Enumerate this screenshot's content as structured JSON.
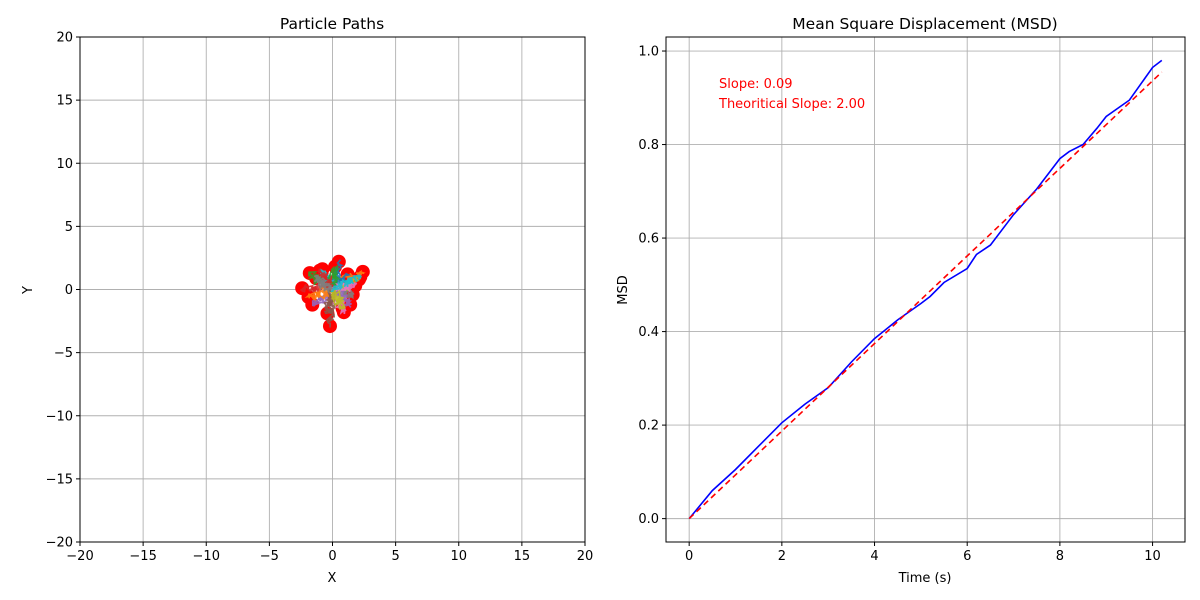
{
  "chart_data": [
    {
      "type": "scatter",
      "title": "Particle Paths",
      "xlabel": "X",
      "ylabel": "Y",
      "xlim": [
        -20,
        20
      ],
      "ylim": [
        -20,
        20
      ],
      "xticks": [
        "−20",
        "−15",
        "−10",
        "−5",
        "0",
        "5",
        "10",
        "15",
        "20"
      ],
      "yticks": [
        "−20",
        "−15",
        "−10",
        "−5",
        "0",
        "5",
        "10",
        "15",
        "20"
      ],
      "grid": true,
      "start_color": "#ff0000",
      "colors": [
        "#1f77b4",
        "#ff7f0e",
        "#2ca02c",
        "#d62728",
        "#9467bd",
        "#8c564b",
        "#e377c2",
        "#7f7f7f",
        "#bcbd22",
        "#17becf"
      ],
      "end_points": [
        [
          0.5,
          2.2
        ],
        [
          2.4,
          1.4
        ],
        [
          -1.8,
          1.3
        ],
        [
          -2.4,
          0.1
        ],
        [
          -1.6,
          -1.2
        ],
        [
          -0.2,
          -2.9
        ],
        [
          0.9,
          -1.8
        ],
        [
          1.6,
          -0.4
        ],
        [
          2.1,
          0.8
        ],
        [
          -0.8,
          1.6
        ],
        [
          1.2,
          1.2
        ],
        [
          -1.9,
          -0.6
        ],
        [
          0.2,
          1.8
        ],
        [
          -1.0,
          1.5
        ],
        [
          1.4,
          -1.2
        ],
        [
          -0.4,
          -1.9
        ],
        [
          1.8,
          0.3
        ],
        [
          -1.3,
          0.9
        ],
        [
          0.8,
          -1.5
        ],
        [
          2.2,
          1.0
        ]
      ]
    },
    {
      "type": "line",
      "title": "Mean Square Displacement (MSD)",
      "xlabel": "Time (s)",
      "ylabel": "MSD",
      "xlim": [
        -0.5,
        10.7
      ],
      "ylim": [
        -0.05,
        1.03
      ],
      "xticks": [
        "0",
        "2",
        "4",
        "6",
        "8",
        "10"
      ],
      "yticks": [
        "0.0",
        "0.2",
        "0.4",
        "0.6",
        "0.8",
        "1.0"
      ],
      "grid": true,
      "annotations": [
        "Slope: 0.09",
        "Theoritical Slope: 2.00"
      ],
      "series": [
        {
          "color": "#0000ff",
          "style": "solid",
          "x": [
            0,
            0.5,
            1.0,
            1.5,
            2.0,
            2.5,
            3.0,
            3.5,
            4.0,
            4.5,
            5.0,
            5.2,
            5.5,
            6.0,
            6.2,
            6.5,
            7.0,
            7.5,
            8.0,
            8.2,
            8.5,
            8.8,
            9.0,
            9.5,
            10.0,
            10.2
          ],
          "y": [
            0,
            0.06,
            0.105,
            0.155,
            0.205,
            0.245,
            0.28,
            0.335,
            0.385,
            0.425,
            0.46,
            0.475,
            0.505,
            0.535,
            0.565,
            0.585,
            0.65,
            0.705,
            0.77,
            0.785,
            0.8,
            0.835,
            0.86,
            0.895,
            0.965,
            0.98
          ]
        },
        {
          "color": "#ff0000",
          "style": "dashed",
          "x": [
            0,
            10.2
          ],
          "y": [
            0,
            0.955
          ]
        }
      ]
    }
  ]
}
